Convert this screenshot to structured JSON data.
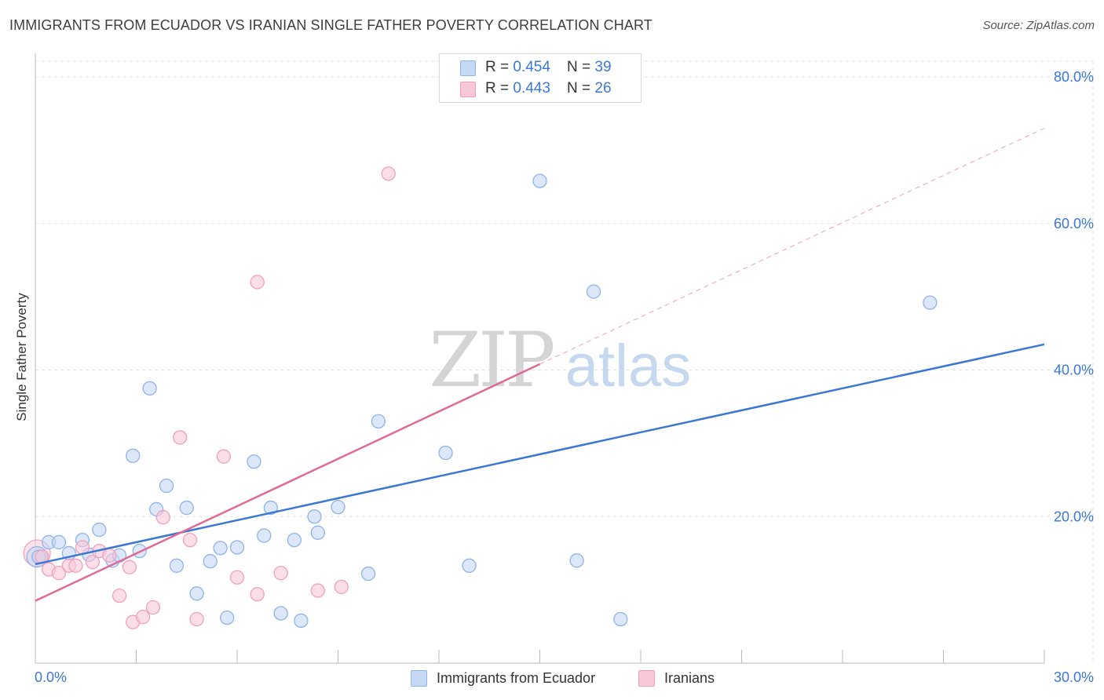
{
  "chart_data": {
    "type": "scatter",
    "title": "IMMIGRANTS FROM ECUADOR VS IRANIAN SINGLE FATHER POVERTY CORRELATION CHART",
    "source": "Source: ZipAtlas.com",
    "ylabel": "Single Father Poverty",
    "xlabel": "",
    "xlim": [
      0,
      30
    ],
    "ylim": [
      0,
      80
    ],
    "y_tick_labels": [
      "80.0%",
      "60.0%",
      "40.0%",
      "20.0%"
    ],
    "x_tick_labels": {
      "left": "0.0%",
      "right": "30.0%"
    },
    "grid": true,
    "watermark": {
      "zip": "ZIP",
      "atlas": "atlas"
    },
    "legend_stats": [
      {
        "r_label": "R = ",
        "r_value": "0.454",
        "n_label": "N = ",
        "n_value": "39"
      },
      {
        "r_label": "R = ",
        "r_value": "0.443",
        "n_label": "N = ",
        "n_value": "26"
      }
    ],
    "series": [
      {
        "name": "Immigrants from Ecuador",
        "color": "#3b78d4",
        "fill": "#c5d9f5",
        "stroke": "#8fb3e8",
        "trend": {
          "x0": 0,
          "y0": 13.5,
          "x1": 30,
          "y1": 43.5
        },
        "points": [
          [
            0.1,
            14.5
          ],
          [
            0.4,
            16.5
          ],
          [
            0.7,
            16.5
          ],
          [
            1.0,
            15.0
          ],
          [
            1.4,
            16.8
          ],
          [
            1.6,
            14.8
          ],
          [
            1.9,
            18.2
          ],
          [
            2.3,
            14.0
          ],
          [
            2.5,
            14.7
          ],
          [
            2.9,
            28.3
          ],
          [
            3.1,
            15.3
          ],
          [
            3.4,
            37.5
          ],
          [
            3.6,
            21.0
          ],
          [
            3.9,
            24.2
          ],
          [
            4.2,
            13.3
          ],
          [
            4.5,
            21.2
          ],
          [
            4.8,
            9.5
          ],
          [
            5.2,
            13.9
          ],
          [
            5.5,
            15.7
          ],
          [
            5.7,
            6.2
          ],
          [
            6.0,
            15.8
          ],
          [
            6.5,
            27.5
          ],
          [
            6.8,
            17.4
          ],
          [
            7.0,
            21.2
          ],
          [
            7.3,
            6.8
          ],
          [
            7.7,
            16.8
          ],
          [
            7.9,
            5.8
          ],
          [
            8.3,
            20.0
          ],
          [
            8.4,
            17.8
          ],
          [
            9.0,
            21.3
          ],
          [
            9.9,
            12.2
          ],
          [
            10.2,
            33.0
          ],
          [
            12.2,
            28.7
          ],
          [
            12.9,
            13.3
          ],
          [
            15.0,
            65.8
          ],
          [
            16.1,
            14.0
          ],
          [
            16.6,
            50.7
          ],
          [
            17.4,
            6.0
          ],
          [
            26.6,
            49.2
          ]
        ]
      },
      {
        "name": "Iranians",
        "color": "#e06a96",
        "fill": "#f8c8d8",
        "stroke": "#f0a0bd",
        "trend": {
          "x0": 0,
          "y0": 8.5,
          "x1": 15,
          "y1": 40.8,
          "dash_x1": 30,
          "dash_y1": 73.0
        },
        "points": [
          [
            0.2,
            14.5
          ],
          [
            0.4,
            12.8
          ],
          [
            0.7,
            12.3
          ],
          [
            1.0,
            13.3
          ],
          [
            1.2,
            13.3
          ],
          [
            1.4,
            15.8
          ],
          [
            1.7,
            13.8
          ],
          [
            1.9,
            15.3
          ],
          [
            2.2,
            14.7
          ],
          [
            2.5,
            9.2
          ],
          [
            2.8,
            13.1
          ],
          [
            2.9,
            5.6
          ],
          [
            3.2,
            6.3
          ],
          [
            3.5,
            7.6
          ],
          [
            3.8,
            19.9
          ],
          [
            4.3,
            30.8
          ],
          [
            4.6,
            16.8
          ],
          [
            4.8,
            6.0
          ],
          [
            5.6,
            28.2
          ],
          [
            6.0,
            11.7
          ],
          [
            6.6,
            52.0
          ],
          [
            6.6,
            9.4
          ],
          [
            7.3,
            12.3
          ],
          [
            8.4,
            9.9
          ],
          [
            9.1,
            10.4
          ],
          [
            10.5,
            66.8
          ]
        ]
      }
    ]
  }
}
